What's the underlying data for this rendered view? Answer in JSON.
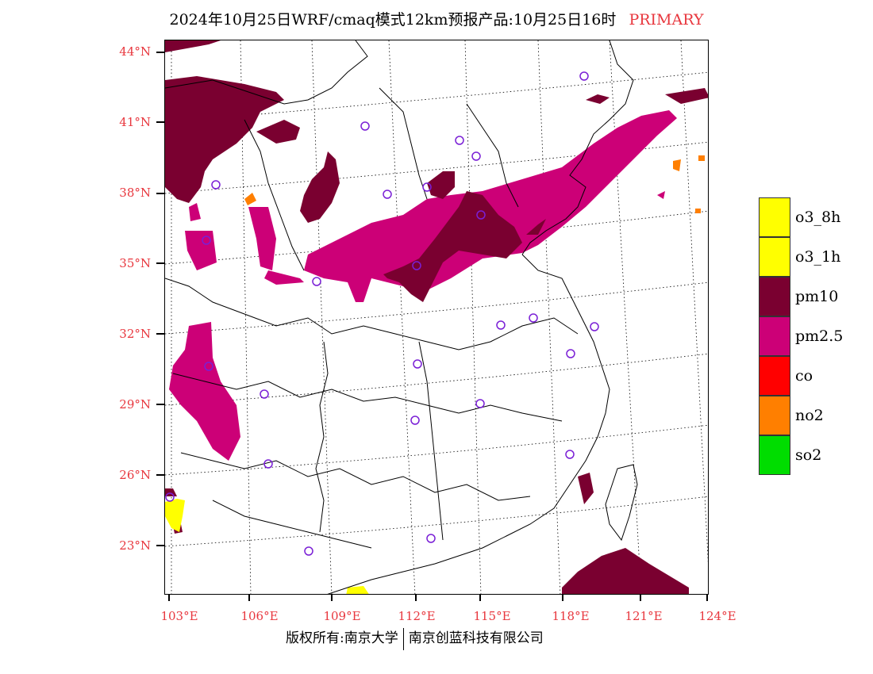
{
  "title": {
    "main": "2024年10月25日WRF/cmaq模式12km预报产品:10月25日16时",
    "tag": "PRIMARY"
  },
  "axes": {
    "lat_labels": [
      "44°N",
      "41°N",
      "38°N",
      "35°N",
      "32°N",
      "29°N",
      "26°N",
      "23°N"
    ],
    "lon_labels": [
      "103°E",
      "106°E",
      "109°E",
      "112°E",
      "115°E",
      "118°E",
      "121°E",
      "124°E"
    ]
  },
  "legend": {
    "items": [
      {
        "label": "o3_8h",
        "color": "#ffff00"
      },
      {
        "label": "o3_1h",
        "color": "#ffff00"
      },
      {
        "label": "pm10",
        "color": "#7a0030"
      },
      {
        "label": "pm2.5",
        "color": "#cc0077"
      },
      {
        "label": "co",
        "color": "#ff0000"
      },
      {
        "label": "no2",
        "color": "#ff7f00"
      },
      {
        "label": "so2",
        "color": "#00dd00"
      }
    ]
  },
  "footer": {
    "left": "版权所有:南京大学",
    "right": "南京创蓝科技有限公司"
  },
  "colors": {
    "axis_label": "#e8373e",
    "station_marker": "#7a1fd6",
    "pm10": "#7a0030",
    "pm25": "#cc0077",
    "o3": "#ffff00",
    "no2": "#ff7f00"
  }
}
